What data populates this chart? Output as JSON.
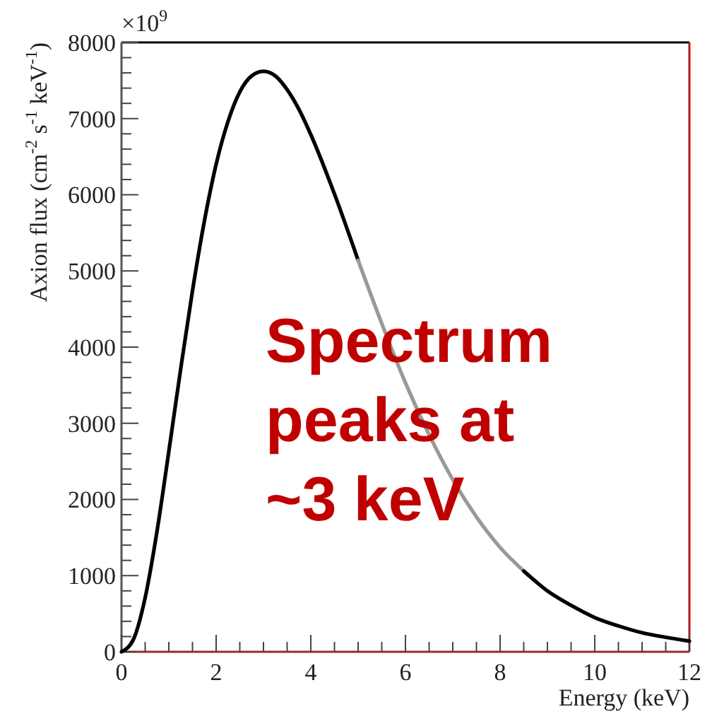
{
  "chart_data": {
    "type": "line",
    "xlabel": "Energy (keV)",
    "ylabel": "Axion flux (cm$^{-2}$ s$^{-1}$ keV$^{-1}$)",
    "annotations": [
      "×10$^{9}$",
      "Spectrum peaks at ~3 keV"
    ],
    "xlim": [
      0,
      12
    ],
    "ylim": [
      0,
      8000
    ],
    "xticks": [
      0,
      {
        "value": 0.5,
        "label": null
      },
      {
        "value": 1,
        "label": null
      },
      {
        "value": 1.5,
        "label": null
      },
      2,
      {
        "value": 2.5,
        "label": null
      },
      {
        "value": 3,
        "label": null
      },
      {
        "value": 3.5,
        "label": null
      },
      4,
      {
        "value": 4.5,
        "label": null
      },
      {
        "value": 5,
        "label": null
      },
      {
        "value": 5.5,
        "label": null
      },
      6,
      {
        "value": 6.5,
        "label": null
      },
      {
        "value": 7,
        "label": null
      },
      {
        "value": 7.5,
        "label": null
      },
      8,
      {
        "value": 8.5,
        "label": null
      },
      {
        "value": 9,
        "label": null
      },
      {
        "value": 9.5,
        "label": null
      },
      10,
      {
        "value": 10.5,
        "label": null
      },
      {
        "value": 11,
        "label": null
      },
      {
        "value": 11.5,
        "label": null
      },
      12
    ],
    "yticks": [
      0,
      {
        "value": 200,
        "label": null
      },
      {
        "value": 400,
        "label": null
      },
      {
        "value": 600,
        "label": null
      },
      {
        "value": 800,
        "label": null
      },
      1000,
      {
        "value": 1200,
        "label": null
      },
      {
        "value": 1400,
        "label": null
      },
      {
        "value": 1600,
        "label": null
      },
      {
        "value": 1800,
        "label": null
      },
      2000,
      {
        "value": 2200,
        "label": null
      },
      {
        "value": 2400,
        "label": null
      },
      {
        "value": 2600,
        "label": null
      },
      {
        "value": 2800,
        "label": null
      },
      3000,
      {
        "value": 3200,
        "label": null
      },
      {
        "value": 3400,
        "label": null
      },
      {
        "value": 3600,
        "label": null
      },
      {
        "value": 3800,
        "label": null
      },
      4000,
      {
        "value": 4200,
        "label": null
      },
      {
        "value": 4400,
        "label": null
      },
      {
        "value": 4600,
        "label": null
      },
      {
        "value": 4800,
        "label": null
      },
      5000,
      {
        "value": 5200,
        "label": null
      },
      {
        "value": 5400,
        "label": null
      },
      {
        "value": 5600,
        "label": null
      },
      {
        "value": 5800,
        "label": null
      },
      6000,
      {
        "value": 6200,
        "label": null
      },
      {
        "value": 6400,
        "label": null
      },
      {
        "value": 6600,
        "label": null
      },
      {
        "value": 6800,
        "label": null
      },
      7000,
      {
        "value": 7200,
        "label": null
      },
      {
        "value": 7400,
        "label": null
      },
      {
        "value": 7600,
        "label": null
      },
      {
        "value": 7800,
        "label": null
      },
      8000
    ],
    "grid": false,
    "marker": "none",
    "line_style": "solid",
    "series": [
      {
        "color": "#000000",
        "x": [
          0,
          0.25,
          0.5,
          0.75,
          1,
          1.25,
          1.5,
          1.75,
          2,
          2.25,
          2.5,
          2.75,
          3,
          3.25,
          3.5,
          3.75,
          4,
          4.5,
          5
        ],
        "values": [
          0,
          160,
          710,
          1580,
          2630,
          3710,
          4740,
          5650,
          6400,
          6960,
          7350,
          7560,
          7620,
          7560,
          7380,
          7120,
          6790,
          6010,
          5140
        ]
      },
      {
        "color": "#999999",
        "x": [
          5,
          5.5,
          6,
          6.5,
          7,
          7.5,
          8,
          8.5
        ],
        "values": [
          5140,
          4310,
          3530,
          2850,
          2260,
          1770,
          1370,
          1060
        ]
      },
      {
        "color": "#000000",
        "x": [
          8.5,
          9,
          9.5,
          10,
          10.5,
          11,
          11.5,
          12
        ],
        "values": [
          1060,
          800,
          610,
          450,
          340,
          250,
          190,
          140
        ]
      }
    ]
  }
}
